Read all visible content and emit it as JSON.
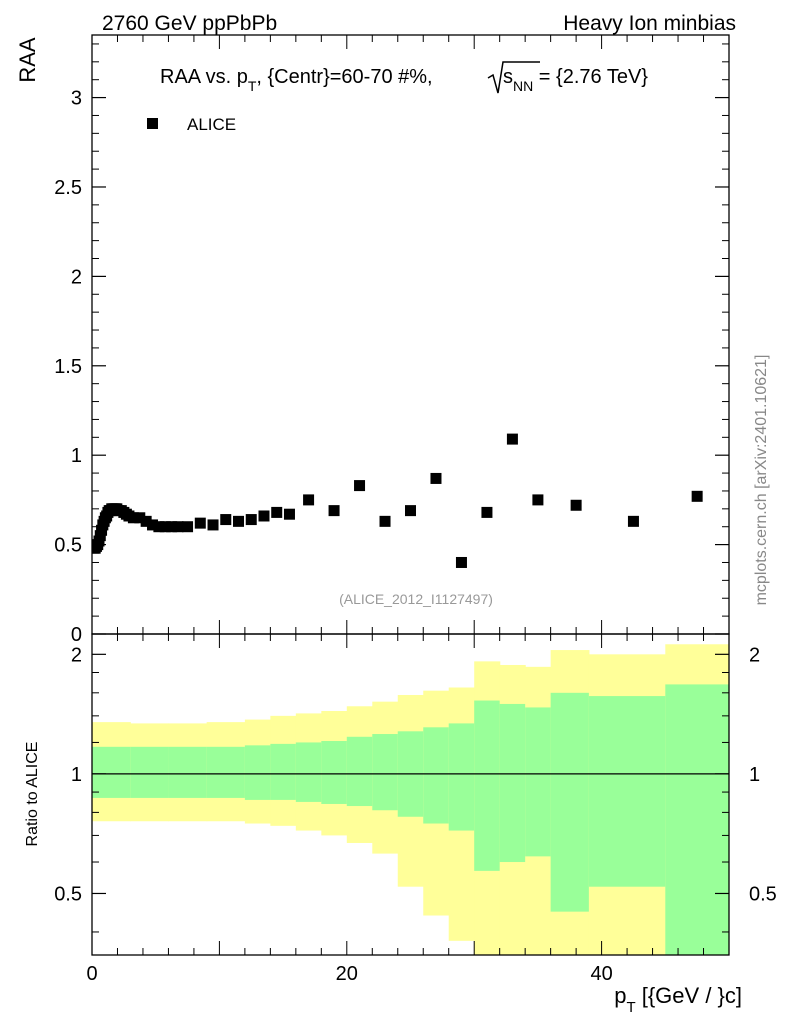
{
  "header": {
    "left": "2760 GeV ppPbPb",
    "right": "Heavy Ion minbias"
  },
  "watermark": "mcplots.cern.ch [arXiv:2401.10621]",
  "analysis_label": "(ALICE_2012_I1127497)",
  "chart_data": [
    {
      "type": "scatter",
      "title": "RAA vs. pT, {Centr}=60-70 #%, √sNN = {2.76 TeV}",
      "title_parts": {
        "lead": "RAA vs. p",
        "sub_t": "T",
        "mid": ", {Centr}=60-70 #%, ",
        "s": "s",
        "sub_nn": "NN",
        "tail": " = {2.76 TeV}"
      },
      "ylabel": "RAA",
      "xlabel": "",
      "xlim": [
        0,
        50
      ],
      "ylim": [
        0,
        3.35
      ],
      "yticks": [
        0,
        0.5,
        1,
        1.5,
        2,
        2.5,
        3
      ],
      "ytick_labels": [
        "0",
        "0.5",
        "1",
        "1.5",
        "2",
        "2.5",
        "3"
      ],
      "xticks": [
        0,
        20,
        40
      ],
      "legend": {
        "position": "top-left",
        "entries": [
          "ALICE"
        ]
      },
      "series": [
        {
          "name": "ALICE",
          "marker": "square",
          "color": "#000000",
          "x": [
            0.15,
            0.25,
            0.35,
            0.45,
            0.55,
            0.65,
            0.75,
            0.85,
            0.95,
            1.05,
            1.15,
            1.25,
            1.35,
            1.45,
            1.55,
            1.65,
            1.75,
            1.85,
            1.95,
            2.1,
            2.3,
            2.5,
            2.7,
            2.9,
            3.25,
            3.75,
            4.25,
            4.75,
            5.25,
            5.75,
            6.25,
            6.75,
            7.5,
            8.5,
            9.5,
            10.5,
            11.5,
            12.5,
            13.5,
            14.5,
            15.5,
            17,
            19,
            21,
            23,
            25,
            27,
            29,
            31,
            33,
            35,
            38,
            42.5,
            47.5
          ],
          "y": [
            0.48,
            0.48,
            0.49,
            0.5,
            0.52,
            0.55,
            0.58,
            0.61,
            0.63,
            0.65,
            0.66,
            0.68,
            0.69,
            0.69,
            0.7,
            0.7,
            0.7,
            0.7,
            0.7,
            0.69,
            0.69,
            0.68,
            0.67,
            0.66,
            0.65,
            0.65,
            0.63,
            0.61,
            0.6,
            0.6,
            0.6,
            0.6,
            0.6,
            0.62,
            0.61,
            0.64,
            0.63,
            0.64,
            0.66,
            0.68,
            0.67,
            0.75,
            0.69,
            0.83,
            0.63,
            0.69,
            0.87,
            0.4,
            0.68,
            1.09,
            0.75,
            0.72,
            0.63,
            0.77
          ]
        }
      ]
    },
    {
      "type": "area",
      "title": "",
      "ylabel": "Ratio to ALICE",
      "xlabel_parts": {
        "p": "p",
        "sub_t": "T",
        "units": " [{GeV / }c]"
      },
      "xlim": [
        0,
        50
      ],
      "ylim": [
        0.35,
        2.25
      ],
      "yticks": [
        0.5,
        1,
        2
      ],
      "ytick_labels": [
        "0.5",
        "1",
        "2"
      ],
      "xticks": [
        0,
        20,
        40
      ],
      "xtick_labels": [
        "0",
        "20",
        "40"
      ],
      "reference_line": 1,
      "band_colors": {
        "outer": "#ffff99",
        "inner": "#99ff99",
        "line": "#000000"
      },
      "bins": [
        0,
        3,
        6,
        9,
        12,
        14,
        16,
        18,
        20,
        22,
        24,
        26,
        28,
        30,
        32,
        34,
        36,
        39,
        45,
        50
      ],
      "outer_band": {
        "upper": [
          1.35,
          1.34,
          1.34,
          1.35,
          1.37,
          1.4,
          1.42,
          1.44,
          1.48,
          1.52,
          1.58,
          1.62,
          1.65,
          1.92,
          1.88,
          1.86,
          2.05,
          2.0,
          2.12,
          2.35
        ],
        "lower": [
          0.76,
          0.76,
          0.76,
          0.76,
          0.75,
          0.74,
          0.72,
          0.7,
          0.67,
          0.63,
          0.52,
          0.44,
          0.38,
          0.31,
          0.3,
          0.29,
          0.27,
          0.3,
          0.25,
          0.25
        ]
      },
      "inner_band": {
        "upper": [
          1.17,
          1.17,
          1.17,
          1.17,
          1.18,
          1.19,
          1.2,
          1.21,
          1.24,
          1.26,
          1.28,
          1.31,
          1.34,
          1.53,
          1.5,
          1.47,
          1.6,
          1.57,
          1.68,
          1.8
        ],
        "lower": [
          0.87,
          0.87,
          0.87,
          0.87,
          0.86,
          0.86,
          0.85,
          0.84,
          0.83,
          0.81,
          0.78,
          0.75,
          0.72,
          0.57,
          0.6,
          0.62,
          0.45,
          0.52,
          0.35,
          0.35
        ]
      }
    }
  ]
}
